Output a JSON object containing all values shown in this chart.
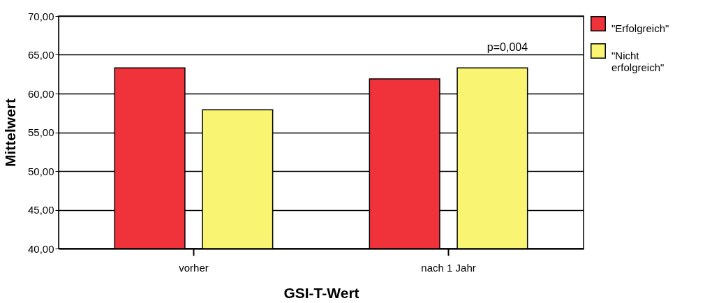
{
  "chart_data": {
    "type": "bar",
    "xlabel": "GSI-T-Wert",
    "ylabel": "Mittelwert",
    "categories": [
      "vorher",
      "nach 1 Jahr"
    ],
    "series": [
      {
        "name": "\"Erfolgreich\"",
        "color": "#f0333a",
        "values": [
          63.3,
          61.9
        ]
      },
      {
        "name": "\"Nicht erfolgreich\"",
        "color": "#f9f572",
        "values": [
          57.9,
          63.3
        ]
      }
    ],
    "ylim": [
      40,
      70
    ],
    "yticks": [
      {
        "value": 40,
        "label": "40,00"
      },
      {
        "value": 45,
        "label": "45,00"
      },
      {
        "value": 50,
        "label": "50,00"
      },
      {
        "value": 55,
        "label": "55,00"
      },
      {
        "value": 60,
        "label": "60,00"
      },
      {
        "value": 65,
        "label": "65,00"
      },
      {
        "value": 70,
        "label": "70,00"
      }
    ],
    "grid": "y",
    "legend": "top right",
    "annotations": [
      "p=0,004"
    ]
  }
}
